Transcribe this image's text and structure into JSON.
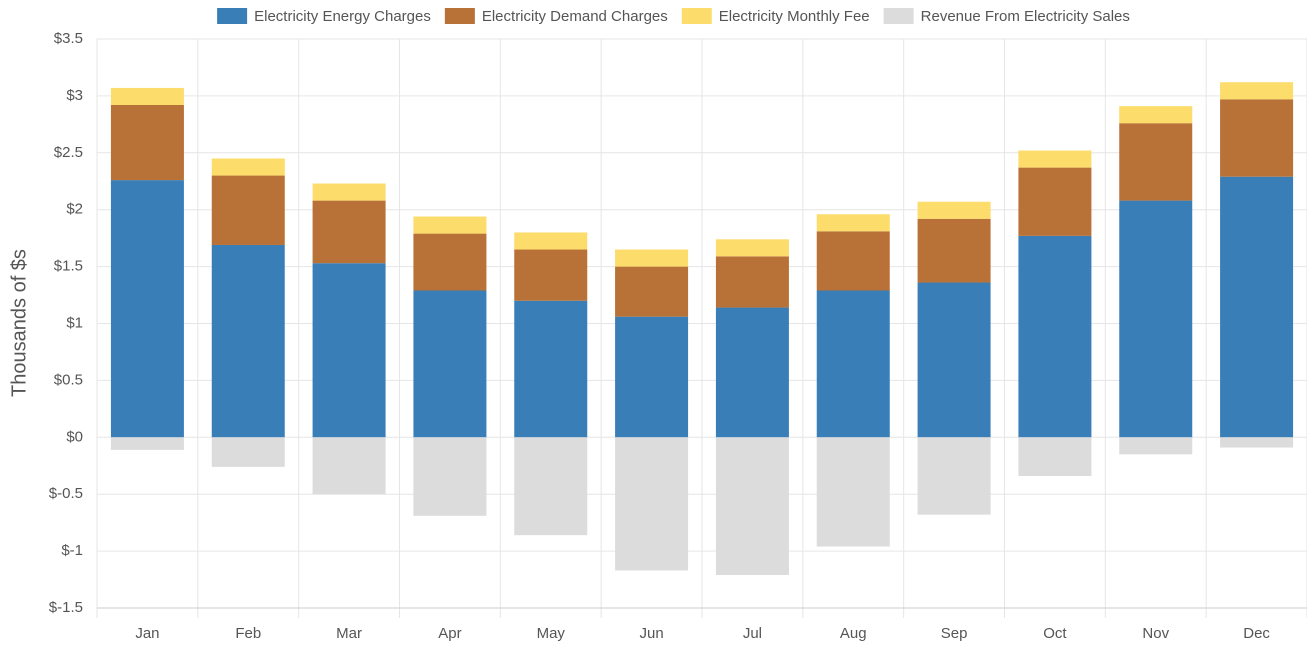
{
  "chart_data": {
    "type": "stacked_bar",
    "ylabel": "Thousands of $s",
    "categories": [
      "Jan",
      "Feb",
      "Mar",
      "Apr",
      "May",
      "Jun",
      "Jul",
      "Aug",
      "Sep",
      "Oct",
      "Nov",
      "Dec"
    ],
    "series": [
      {
        "name": "Electricity Energy Charges",
        "color": "#3a7eb8",
        "values": [
          2.26,
          1.69,
          1.53,
          1.29,
          1.2,
          1.06,
          1.14,
          1.29,
          1.36,
          1.77,
          2.08,
          2.29
        ]
      },
      {
        "name": "Electricity Demand Charges",
        "color": "#b87137",
        "values": [
          0.66,
          0.61,
          0.55,
          0.5,
          0.45,
          0.44,
          0.45,
          0.52,
          0.56,
          0.6,
          0.68,
          0.68
        ]
      },
      {
        "name": "Electricity Monthly Fee",
        "color": "#fcdc6a",
        "values": [
          0.15,
          0.15,
          0.15,
          0.15,
          0.15,
          0.15,
          0.15,
          0.15,
          0.15,
          0.15,
          0.15,
          0.15
        ]
      },
      {
        "name": "Revenue From Electricity Sales",
        "color": "#dcdcdc",
        "values": [
          -0.11,
          -0.26,
          -0.5,
          -0.69,
          -0.86,
          -1.17,
          -1.21,
          -0.96,
          -0.68,
          -0.34,
          -0.15,
          -0.09
        ]
      }
    ],
    "ylim": [
      -1.5,
      3.5
    ],
    "yticks": [
      {
        "value": -1.5,
        "label": "$-1.5"
      },
      {
        "value": -1,
        "label": "$-1"
      },
      {
        "value": -0.5,
        "label": "$-0.5"
      },
      {
        "value": 0,
        "label": "$0"
      },
      {
        "value": 0.5,
        "label": "$0.5"
      },
      {
        "value": 1,
        "label": "$1"
      },
      {
        "value": 1.5,
        "label": "$1.5"
      },
      {
        "value": 2,
        "label": "$2"
      },
      {
        "value": 2.5,
        "label": "$2.5"
      },
      {
        "value": 3,
        "label": "$3"
      },
      {
        "value": 3.5,
        "label": "$3.5"
      }
    ],
    "grid": true,
    "legend": "top"
  }
}
